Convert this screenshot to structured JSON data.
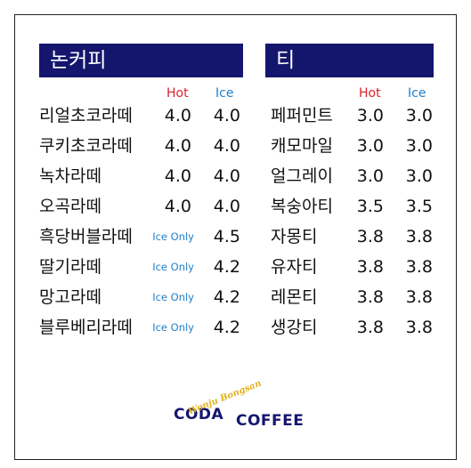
{
  "sections": {
    "noncoffee": {
      "title": "논커피",
      "hot_label": "Hot",
      "ice_label": "Ice",
      "items": [
        {
          "name": "리얼초코라떼",
          "hot": "4.0",
          "ice": "4.0"
        },
        {
          "name": "쿠키초코라떼",
          "hot": "4.0",
          "ice": "4.0"
        },
        {
          "name": "녹차라떼",
          "hot": "4.0",
          "ice": "4.0"
        },
        {
          "name": "오곡라떼",
          "hot": "4.0",
          "ice": "4.0"
        },
        {
          "name": "흑당버블라떼",
          "hot": "Ice Only",
          "ice": "4.5"
        },
        {
          "name": "딸기라떼",
          "hot": "Ice Only",
          "ice": "4.2"
        },
        {
          "name": "망고라떼",
          "hot": "Ice Only",
          "ice": "4.2"
        },
        {
          "name": "블루베리라떼",
          "hot": "Ice Only",
          "ice": "4.2"
        }
      ]
    },
    "tea": {
      "title": "티",
      "hot_label": "Hot",
      "ice_label": "Ice",
      "items": [
        {
          "name": "페퍼민트",
          "hot": "3.0",
          "ice": "3.0"
        },
        {
          "name": "캐모마일",
          "hot": "3.0",
          "ice": "3.0"
        },
        {
          "name": "얼그레이",
          "hot": "3.0",
          "ice": "3.0"
        },
        {
          "name": "복숭아티",
          "hot": "3.5",
          "ice": "3.5"
        },
        {
          "name": "자몽티",
          "hot": "3.8",
          "ice": "3.8"
        },
        {
          "name": "유자티",
          "hot": "3.8",
          "ice": "3.8"
        },
        {
          "name": "레몬티",
          "hot": "3.8",
          "ice": "3.8"
        },
        {
          "name": "생강티",
          "hot": "3.8",
          "ice": "3.8"
        }
      ]
    }
  },
  "logo": {
    "word1": "CODA",
    "word2": "COFFEE",
    "script": "Wonju Bongsan"
  },
  "colors": {
    "header_bg": "#14166e",
    "hot": "#d9232d",
    "ice": "#1f7fc8",
    "logo_gold": "#e0b21d"
  }
}
